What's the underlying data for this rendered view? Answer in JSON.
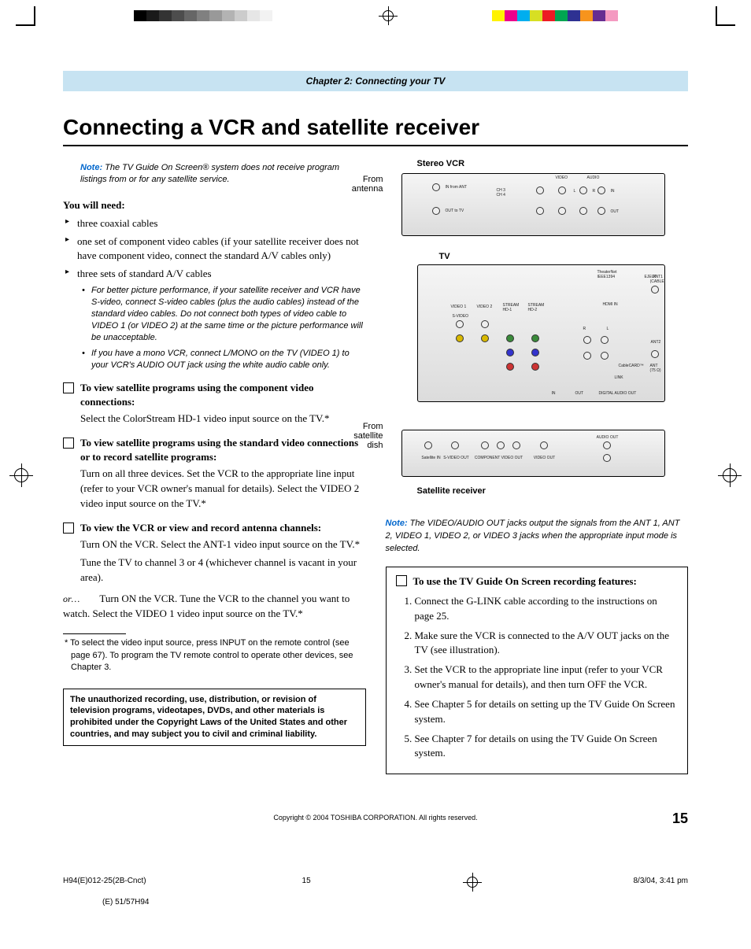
{
  "registration": {
    "gray_swatches": [
      "#000000",
      "#1a1a1a",
      "#333333",
      "#4d4d4d",
      "#666666",
      "#808080",
      "#999999",
      "#b3b3b3",
      "#cccccc",
      "#e6e6e6",
      "#f2f2f2",
      "#ffffff"
    ],
    "color_swatches": [
      "#fff200",
      "#ec008c",
      "#00aeef",
      "#d7df23",
      "#ed1c24",
      "#00a651",
      "#2e3192",
      "#f7941d",
      "#662d91",
      "#f49ac1"
    ]
  },
  "chapter_header": "Chapter 2: Connecting your TV",
  "title": "Connecting a VCR and satellite receiver",
  "note1_label": "Note:",
  "note1_text": "The TV Guide On Screen® system does not receive program listings from or for any satellite service.",
  "needs_head": "You will need:",
  "needs": {
    "item1": "three coaxial cables",
    "item2": "one set of component video cables (if your satellite receiver does not have component video, connect the standard A/V cables only)",
    "item3": "three sets of standard A/V cables",
    "sub1": "For better picture performance, if your satellite receiver and VCR have S-video, connect S-video cables (plus the audio cables) instead of the standard video cables. Do not connect both types of video cable to VIDEO 1 (or VIDEO 2) at the same time or the picture performance will be unacceptable.",
    "sub2": "If you have a mono VCR, connect L/MONO on the TV (VIDEO 1) to your VCR's AUDIO OUT jack using the white audio cable only."
  },
  "task1_head": "To view satellite programs using the component video connections:",
  "task1_text": "Select the ColorStream HD-1 video input source on the TV.*",
  "task2_head": "To view satellite programs using the standard video connections or to record satellite programs:",
  "task2_text": "Turn on all three devices. Set the VCR to the appropriate line input (refer to your VCR owner's manual for details). Select the VIDEO 2 video input source on the TV.*",
  "task3_head": "To view the VCR or view and record antenna channels:",
  "task3_text1": "Turn ON the VCR. Select the ANT-1 video input source on the TV.*",
  "task3_text2": "Tune the TV to channel 3 or 4 (whichever channel is vacant in your area).",
  "or_label": "or…",
  "or_text": "Turn ON the VCR. Tune the VCR to the channel you want to watch. Select the VIDEO 1 video input source on the TV.*",
  "footnote": "* To select the video input source, press INPUT on the remote control (see page 67). To program the TV remote control to operate other devices, see Chapter 3.",
  "warning": "The unauthorized recording, use, distribution, or revision of television programs, videotapes, DVDs, and other materials is prohibited under the Copyright Laws of the United States and other countries, and may subject you to civil and criminal liability.",
  "diagram": {
    "vcr_label": "Stereo VCR",
    "tv_label": "TV",
    "sat_label": "Satellite receiver",
    "from_antenna": "From antenna",
    "from_dish": "From satellite dish",
    "vcr_ports": {
      "in_ant": "IN from ANT",
      "out_tv": "OUT to TV",
      "ch": "CH 3\nCH 4",
      "video": "VIDEO",
      "audio": "AUDIO",
      "l": "L",
      "r": "R",
      "in": "IN",
      "out": "OUT"
    },
    "tv_ports": {
      "video1": "VIDEO 1",
      "video2": "VIDEO 2",
      "stream1": "STREAM HD-1",
      "stream2": "STREAM HD-2",
      "svideo": "S-VIDEO",
      "hdmi": "HDMI IN",
      "ant1": "ANT1 (CABLE)",
      "ant2": "ANT2",
      "ant75": "ANT (75 Ω)",
      "cablecard": "CableCARD™",
      "digital_out": "DIGITAL AUDIO OUT",
      "eject": "EJECT",
      "theaternet": "TheaterNet IEEE1394",
      "in": "IN",
      "out": "OUT",
      "r": "R",
      "l": "L",
      "mono": "MONO",
      "link": "LINK"
    },
    "sat_ports": {
      "sat_in": "Satellite IN",
      "svideo_out": "S-VIDEO OUT",
      "comp_out": "COMPONENT VIDEO OUT",
      "video_out": "VIDEO OUT",
      "audio_out": "AUDIO OUT"
    }
  },
  "note2_label": "Note:",
  "note2_text": "The VIDEO/AUDIO OUT jacks output the signals from the ANT 1, ANT 2, VIDEO 1, VIDEO 2, or VIDEO 3 jacks when the appropriate input mode is selected.",
  "guide_head": "To use the TV Guide On Screen recording features:",
  "guide_steps": {
    "s1": "Connect the G-LINK cable according to the instructions on page 25.",
    "s2": "Make sure the VCR is connected to the A/V OUT jacks on the TV (see illustration).",
    "s3": "Set the VCR to the appropriate line input (refer to your VCR owner's manual for details), and then turn OFF the VCR.",
    "s4": "See Chapter 5 for details on setting up the TV Guide On Screen system.",
    "s5": "See Chapter 7 for details on using the TV Guide On Screen system."
  },
  "copyright": "Copyright © 2004 TOSHIBA CORPORATION. All rights reserved.",
  "page_num": "15",
  "meta": {
    "file": "H94(E)012-25(2B-Cnct)",
    "page": "15",
    "date": "8/3/04, 3:41 pm",
    "code": "(E) 51/57H94"
  }
}
